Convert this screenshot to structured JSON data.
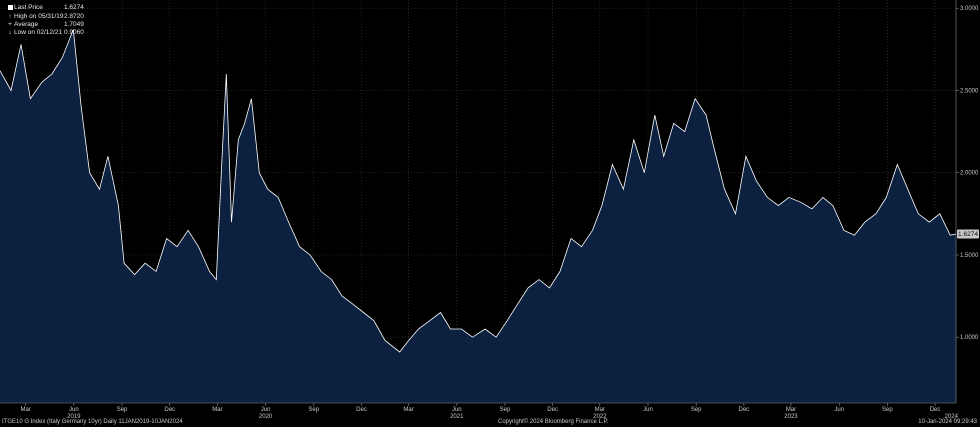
{
  "legend": {
    "last_price_label": "Last Price",
    "last_price_value": "1.6274",
    "high_label": "High on 05/31/19",
    "high_value": "2.8720",
    "average_label": "Average",
    "average_value": "1.7049",
    "low_label": "Low on 02/12/21",
    "low_value": "0.9060"
  },
  "footer": {
    "left": "ITGE10 G Index (Italy Germany 10yr)  Daily 11JAN2019-10JAN2024",
    "center": "Copyright© 2024 Bloomberg Finance L.P.",
    "right": "10-Jan-2024 09:29:43"
  },
  "colors": {
    "background": "#000000",
    "area_fill": "#0c2140",
    "line": "#ffffff",
    "grid": "#3a3a3a",
    "last_price_box": "#c9c9c9"
  },
  "chart_data": {
    "type": "area",
    "title": "",
    "xlabel": "",
    "ylabel": "",
    "ylim": [
      0.6,
      3.05
    ],
    "yticks": [
      1.0,
      1.5,
      2.0,
      2.5,
      3.0
    ],
    "ytick_labels": [
      "1.0000",
      "1.5000",
      "2.0000",
      "2.5000",
      "3.0000"
    ],
    "last_price_label": "1.6274",
    "x_month_ticks": [
      {
        "date": "2019-03",
        "label": "Mar"
      },
      {
        "date": "2019-06",
        "label": "Jun"
      },
      {
        "date": "2019-09",
        "label": "Sep"
      },
      {
        "date": "2019-12",
        "label": "Dec"
      },
      {
        "date": "2020-03",
        "label": "Mar"
      },
      {
        "date": "2020-06",
        "label": "Jun"
      },
      {
        "date": "2020-09",
        "label": "Sep"
      },
      {
        "date": "2020-12",
        "label": "Dec"
      },
      {
        "date": "2021-03",
        "label": "Mar"
      },
      {
        "date": "2021-06",
        "label": "Jun"
      },
      {
        "date": "2021-09",
        "label": "Sep"
      },
      {
        "date": "2021-12",
        "label": "Dec"
      },
      {
        "date": "2022-03",
        "label": "Mar"
      },
      {
        "date": "2022-06",
        "label": "Jun"
      },
      {
        "date": "2022-09",
        "label": "Sep"
      },
      {
        "date": "2022-12",
        "label": "Dec"
      },
      {
        "date": "2023-03",
        "label": "Mar"
      },
      {
        "date": "2023-06",
        "label": "Jun"
      },
      {
        "date": "2023-09",
        "label": "Sep"
      },
      {
        "date": "2023-12",
        "label": "Dec"
      }
    ],
    "x_year_labels": [
      {
        "date": "2019-06",
        "label": "2019"
      },
      {
        "date": "2020-06",
        "label": "2020"
      },
      {
        "date": "2021-06",
        "label": "2021"
      },
      {
        "date": "2022-03",
        "label": "2022"
      },
      {
        "date": "2023-03",
        "label": "2023"
      },
      {
        "date": "2024-01",
        "label": "2024"
      }
    ],
    "series": [
      {
        "x": [
          "2019-01-11",
          "2019-02-01",
          "2019-02-20",
          "2019-03-10",
          "2019-04-01",
          "2019-04-20",
          "2019-05-10",
          "2019-05-31",
          "2019-06-15",
          "2019-07-01",
          "2019-07-20",
          "2019-08-05",
          "2019-08-25",
          "2019-09-05",
          "2019-09-25",
          "2019-10-15",
          "2019-11-05",
          "2019-11-25",
          "2019-12-15",
          "2020-01-05",
          "2020-01-25",
          "2020-02-15",
          "2020-02-28",
          "2020-03-10",
          "2020-03-18",
          "2020-03-28",
          "2020-04-10",
          "2020-04-22",
          "2020-05-05",
          "2020-05-20",
          "2020-06-05",
          "2020-06-25",
          "2020-07-15",
          "2020-08-05",
          "2020-08-25",
          "2020-09-15",
          "2020-10-05",
          "2020-10-25",
          "2020-11-15",
          "2020-12-05",
          "2020-12-25",
          "2021-01-15",
          "2021-02-12",
          "2021-03-01",
          "2021-03-20",
          "2021-04-10",
          "2021-05-01",
          "2021-05-20",
          "2021-06-10",
          "2021-07-01",
          "2021-07-25",
          "2021-08-15",
          "2021-09-05",
          "2021-09-25",
          "2021-10-15",
          "2021-11-05",
          "2021-11-25",
          "2021-12-15",
          "2022-01-05",
          "2022-01-25",
          "2022-02-15",
          "2022-03-05",
          "2022-03-25",
          "2022-04-15",
          "2022-05-05",
          "2022-05-25",
          "2022-06-14",
          "2022-07-01",
          "2022-07-20",
          "2022-08-10",
          "2022-08-30",
          "2022-09-20",
          "2022-10-05",
          "2022-10-25",
          "2022-11-15",
          "2022-12-05",
          "2022-12-25",
          "2023-01-15",
          "2023-02-05",
          "2023-02-25",
          "2023-03-20",
          "2023-04-10",
          "2023-05-01",
          "2023-05-20",
          "2023-06-10",
          "2023-06-30",
          "2023-07-20",
          "2023-08-10",
          "2023-08-30",
          "2023-09-20",
          "2023-10-10",
          "2023-10-30",
          "2023-11-20",
          "2023-12-10",
          "2023-12-30",
          "2024-01-10"
        ],
        "y": [
          2.62,
          2.5,
          2.78,
          2.45,
          2.55,
          2.6,
          2.7,
          2.87,
          2.4,
          2.0,
          1.9,
          2.1,
          1.8,
          1.45,
          1.38,
          1.45,
          1.4,
          1.6,
          1.55,
          1.65,
          1.55,
          1.4,
          1.35,
          2.1,
          2.6,
          1.7,
          2.2,
          2.3,
          2.45,
          2.0,
          1.9,
          1.85,
          1.7,
          1.55,
          1.5,
          1.4,
          1.35,
          1.25,
          1.2,
          1.15,
          1.1,
          0.98,
          0.91,
          0.98,
          1.05,
          1.1,
          1.15,
          1.05,
          1.05,
          1.0,
          1.05,
          1.0,
          1.1,
          1.2,
          1.3,
          1.35,
          1.3,
          1.4,
          1.6,
          1.55,
          1.65,
          1.8,
          2.05,
          1.9,
          2.2,
          2.0,
          2.35,
          2.1,
          2.3,
          2.25,
          2.45,
          2.35,
          2.15,
          1.9,
          1.75,
          2.1,
          1.95,
          1.85,
          1.8,
          1.85,
          1.82,
          1.78,
          1.85,
          1.8,
          1.65,
          1.62,
          1.7,
          1.75,
          1.85,
          2.05,
          1.9,
          1.75,
          1.7,
          1.75,
          1.62,
          1.6274
        ]
      }
    ]
  }
}
